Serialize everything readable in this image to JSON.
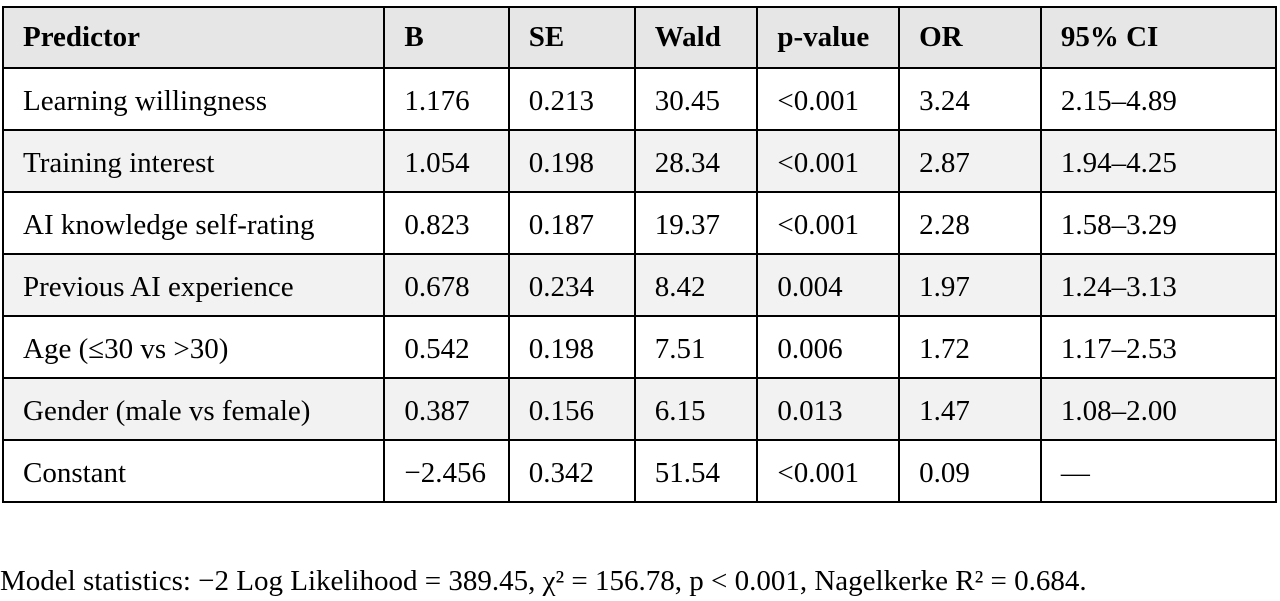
{
  "table": {
    "headers": [
      "Predictor",
      "B",
      "SE",
      "Wald",
      "p-value",
      "OR",
      "95% CI"
    ],
    "rows": [
      [
        "Learning willingness",
        "1.176",
        "0.213",
        "30.45",
        "<0.001",
        "3.24",
        "2.15–4.89"
      ],
      [
        "Training interest",
        "1.054",
        "0.198",
        "28.34",
        "<0.001",
        "2.87",
        "1.94–4.25"
      ],
      [
        "AI knowledge self-rating",
        "0.823",
        "0.187",
        "19.37",
        "<0.001",
        "2.28",
        "1.58–3.29"
      ],
      [
        "Previous AI experience",
        "0.678",
        "0.234",
        "8.42",
        "0.004",
        "1.97",
        "1.24–3.13"
      ],
      [
        "Age (≤30 vs >30)",
        "0.542",
        "0.198",
        "7.51",
        "0.006",
        "1.72",
        "1.17–2.53"
      ],
      [
        "Gender (male vs female)",
        "0.387",
        "0.156",
        "6.15",
        "0.013",
        "1.47",
        "1.08–2.00"
      ],
      [
        "Constant",
        "−2.456",
        "0.342",
        "51.54",
        "<0.001",
        "0.09",
        "—"
      ]
    ]
  },
  "footnote": "Model statistics: −2 Log Likelihood = 389.45, χ² = 156.78, p < 0.001, Nagelkerke R² = 0.684."
}
